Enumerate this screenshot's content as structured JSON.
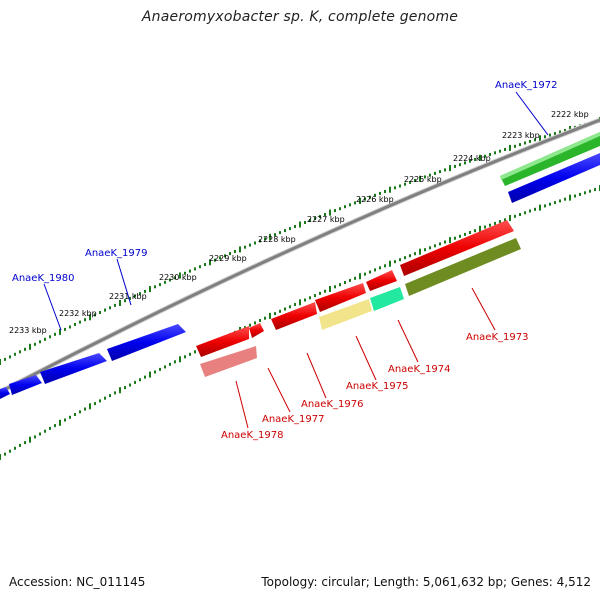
{
  "title": "Anaeromyxobacter sp. K, complete genome",
  "footer": {
    "accession": "Accession: NC_011145",
    "info": "Topology: circular; Length: 5,061,632 bp; Genes: 4,512"
  },
  "scale_labels": [
    "2222 kbp",
    "2223 kbp",
    "2224 kbp",
    "2225 kbp",
    "2226 kbp",
    "2227 kbp",
    "2228 kbp",
    "2229 kbp",
    "2230 kbp",
    "2231 kbp",
    "2232 kbp",
    "2233 kbp"
  ],
  "colors": {
    "forward_label": "#0000cc",
    "reverse_label": "#cc0000",
    "tick": "#1a7a1a",
    "backbone": "#8a8a8a"
  },
  "genes": [
    {
      "name": "AnaeK_1972",
      "strand": "forward"
    },
    {
      "name": "AnaeK_1973",
      "strand": "reverse"
    },
    {
      "name": "AnaeK_1974",
      "strand": "reverse"
    },
    {
      "name": "AnaeK_1975",
      "strand": "reverse"
    },
    {
      "name": "AnaeK_1976",
      "strand": "reverse"
    },
    {
      "name": "AnaeK_1977",
      "strand": "reverse"
    },
    {
      "name": "AnaeK_1978",
      "strand": "reverse"
    },
    {
      "name": "AnaeK_1979",
      "strand": "forward"
    },
    {
      "name": "AnaeK_1980",
      "strand": "forward"
    }
  ]
}
